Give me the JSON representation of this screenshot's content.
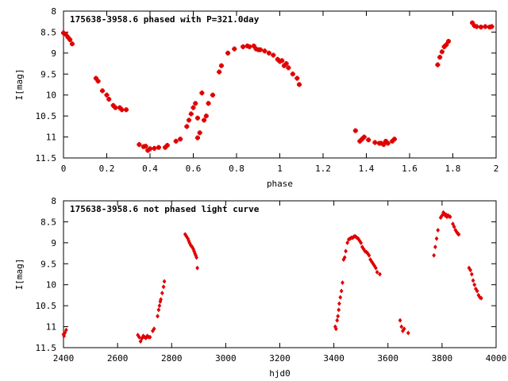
{
  "chart_data": [
    {
      "type": "scatter",
      "title": "175638-3958.6 phased with P=321.0day",
      "xlabel": "phase",
      "ylabel": "I[mag]",
      "xlim": [
        0,
        2
      ],
      "ylim": [
        8,
        11.5
      ],
      "y_inverted": true,
      "grid": false,
      "color": "#e00000",
      "x_ticks": [
        "0",
        "0.2",
        "0.4",
        "0.6",
        "0.8",
        "1",
        "1.2",
        "1.4",
        "1.6",
        "1.8",
        "2"
      ],
      "y_ticks": [
        "8",
        "8.5",
        "9",
        "9.5",
        "10",
        "10.5",
        "11",
        "11.5"
      ],
      "series": [
        {
          "x": [
            0.0,
            0.01,
            0.02,
            0.03,
            0.04,
            0.15,
            0.16,
            0.18,
            0.2,
            0.21,
            0.23,
            0.24,
            0.26,
            0.27,
            0.29,
            0.35,
            0.37,
            0.38,
            0.39,
            0.4,
            0.42,
            0.44,
            0.47,
            0.48,
            0.52,
            0.54,
            0.57,
            0.58,
            0.59,
            0.6,
            0.61,
            0.62,
            0.62,
            0.63,
            0.64,
            0.65,
            0.66,
            0.67,
            0.69,
            0.72,
            0.73,
            0.76,
            0.79,
            0.83,
            0.85,
            0.86,
            0.88,
            0.89,
            0.9,
            0.91,
            0.93,
            0.95,
            0.97,
            0.99,
            1.0,
            1.01,
            1.02,
            1.03,
            1.04,
            1.06,
            1.08,
            1.09,
            1.35,
            1.37,
            1.38,
            1.39,
            1.41,
            1.44,
            1.46,
            1.47,
            1.48,
            1.49,
            1.5,
            1.52,
            1.53,
            1.73,
            1.74,
            1.75,
            1.76,
            1.77,
            1.78,
            1.89,
            1.9,
            1.91,
            1.93,
            1.95,
            1.97,
            1.98
          ],
          "y": [
            8.52,
            8.55,
            8.62,
            8.68,
            8.78,
            9.6,
            9.67,
            9.9,
            10.0,
            10.1,
            10.25,
            10.3,
            10.3,
            10.35,
            10.35,
            11.18,
            11.23,
            11.22,
            11.32,
            11.28,
            11.27,
            11.25,
            11.25,
            11.2,
            11.1,
            11.05,
            10.75,
            10.6,
            10.45,
            10.3,
            10.2,
            10.55,
            11.02,
            10.9,
            9.95,
            10.6,
            10.5,
            10.2,
            10.0,
            9.45,
            9.3,
            9.0,
            8.9,
            8.85,
            8.83,
            8.85,
            8.83,
            8.9,
            8.92,
            8.92,
            8.95,
            9.0,
            9.05,
            9.15,
            9.2,
            9.18,
            9.3,
            9.25,
            9.35,
            9.5,
            9.6,
            9.75,
            10.85,
            11.1,
            11.05,
            11.0,
            11.07,
            11.13,
            11.15,
            11.15,
            11.18,
            11.1,
            11.15,
            11.1,
            11.05,
            9.28,
            9.1,
            8.97,
            8.85,
            8.8,
            8.72,
            8.28,
            8.35,
            8.37,
            8.38,
            8.37,
            8.38,
            8.37
          ]
        }
      ]
    },
    {
      "type": "scatter",
      "title": "175638-3958.6 not phased light curve",
      "xlabel": "hjd0",
      "ylabel": "I[mag]",
      "xlim": [
        2400,
        4000
      ],
      "ylim": [
        8,
        11.5
      ],
      "y_inverted": true,
      "grid": false,
      "color": "#e00000",
      "x_ticks": [
        "2400",
        "2600",
        "2800",
        "3000",
        "3200",
        "3400",
        "3600",
        "3800",
        "4000"
      ],
      "y_ticks": [
        "8",
        "8.5",
        "9",
        "9.5",
        "10",
        "10.5",
        "11",
        "11.5"
      ],
      "series": [
        {
          "x": [
            2400,
            2402,
            2405,
            2410,
            2675,
            2680,
            2685,
            2690,
            2695,
            2700,
            2705,
            2710,
            2715,
            2720,
            2730,
            2735,
            2748,
            2752,
            2755,
            2758,
            2760,
            2765,
            2770,
            2773,
            2850,
            2855,
            2860,
            2863,
            2866,
            2870,
            2873,
            2876,
            2880,
            2883,
            2886,
            2889,
            2892,
            2895,
            3405,
            3408,
            3412,
            3415,
            3418,
            3420,
            3424,
            3428,
            3432,
            3436,
            3440,
            3444,
            3450,
            3455,
            3460,
            3465,
            3470,
            3475,
            3480,
            3485,
            3490,
            3495,
            3500,
            3505,
            3510,
            3515,
            3520,
            3525,
            3530,
            3535,
            3540,
            3545,
            3550,
            3555,
            3560,
            3570,
            3645,
            3650,
            3655,
            3660,
            3675,
            3770,
            3775,
            3780,
            3785,
            3795,
            3800,
            3805,
            3808,
            3812,
            3815,
            3818,
            3822,
            3826,
            3830,
            3840,
            3845,
            3850,
            3855,
            3858,
            3862,
            3900,
            3905,
            3910,
            3915,
            3920,
            3925,
            3930,
            3935,
            3940,
            3945
          ],
          "y": [
            11.18,
            11.22,
            11.15,
            11.08,
            11.2,
            11.25,
            11.35,
            11.28,
            11.22,
            11.25,
            11.27,
            11.22,
            11.25,
            11.25,
            11.1,
            11.05,
            10.75,
            10.6,
            10.5,
            10.4,
            10.35,
            10.2,
            10.05,
            9.92,
            8.8,
            8.85,
            8.9,
            8.95,
            9.0,
            9.05,
            9.08,
            9.1,
            9.15,
            9.2,
            9.25,
            9.3,
            9.35,
            9.6,
            11.0,
            11.05,
            10.85,
            10.75,
            10.6,
            10.45,
            10.3,
            10.15,
            9.95,
            9.4,
            9.35,
            9.2,
            9.0,
            8.92,
            8.9,
            8.88,
            8.88,
            8.85,
            8.85,
            8.88,
            8.9,
            8.95,
            9.0,
            9.1,
            9.15,
            9.2,
            9.22,
            9.25,
            9.3,
            9.4,
            9.45,
            9.5,
            9.55,
            9.6,
            9.7,
            9.75,
            10.85,
            11.0,
            11.1,
            11.05,
            11.15,
            9.3,
            9.1,
            8.9,
            8.7,
            8.4,
            8.35,
            8.28,
            8.3,
            8.35,
            8.33,
            8.38,
            8.35,
            8.37,
            8.38,
            8.55,
            8.62,
            8.7,
            8.75,
            8.78,
            8.8,
            9.6,
            9.65,
            9.75,
            9.9,
            10.0,
            10.1,
            10.15,
            10.25,
            10.3,
            10.32
          ]
        }
      ]
    }
  ]
}
